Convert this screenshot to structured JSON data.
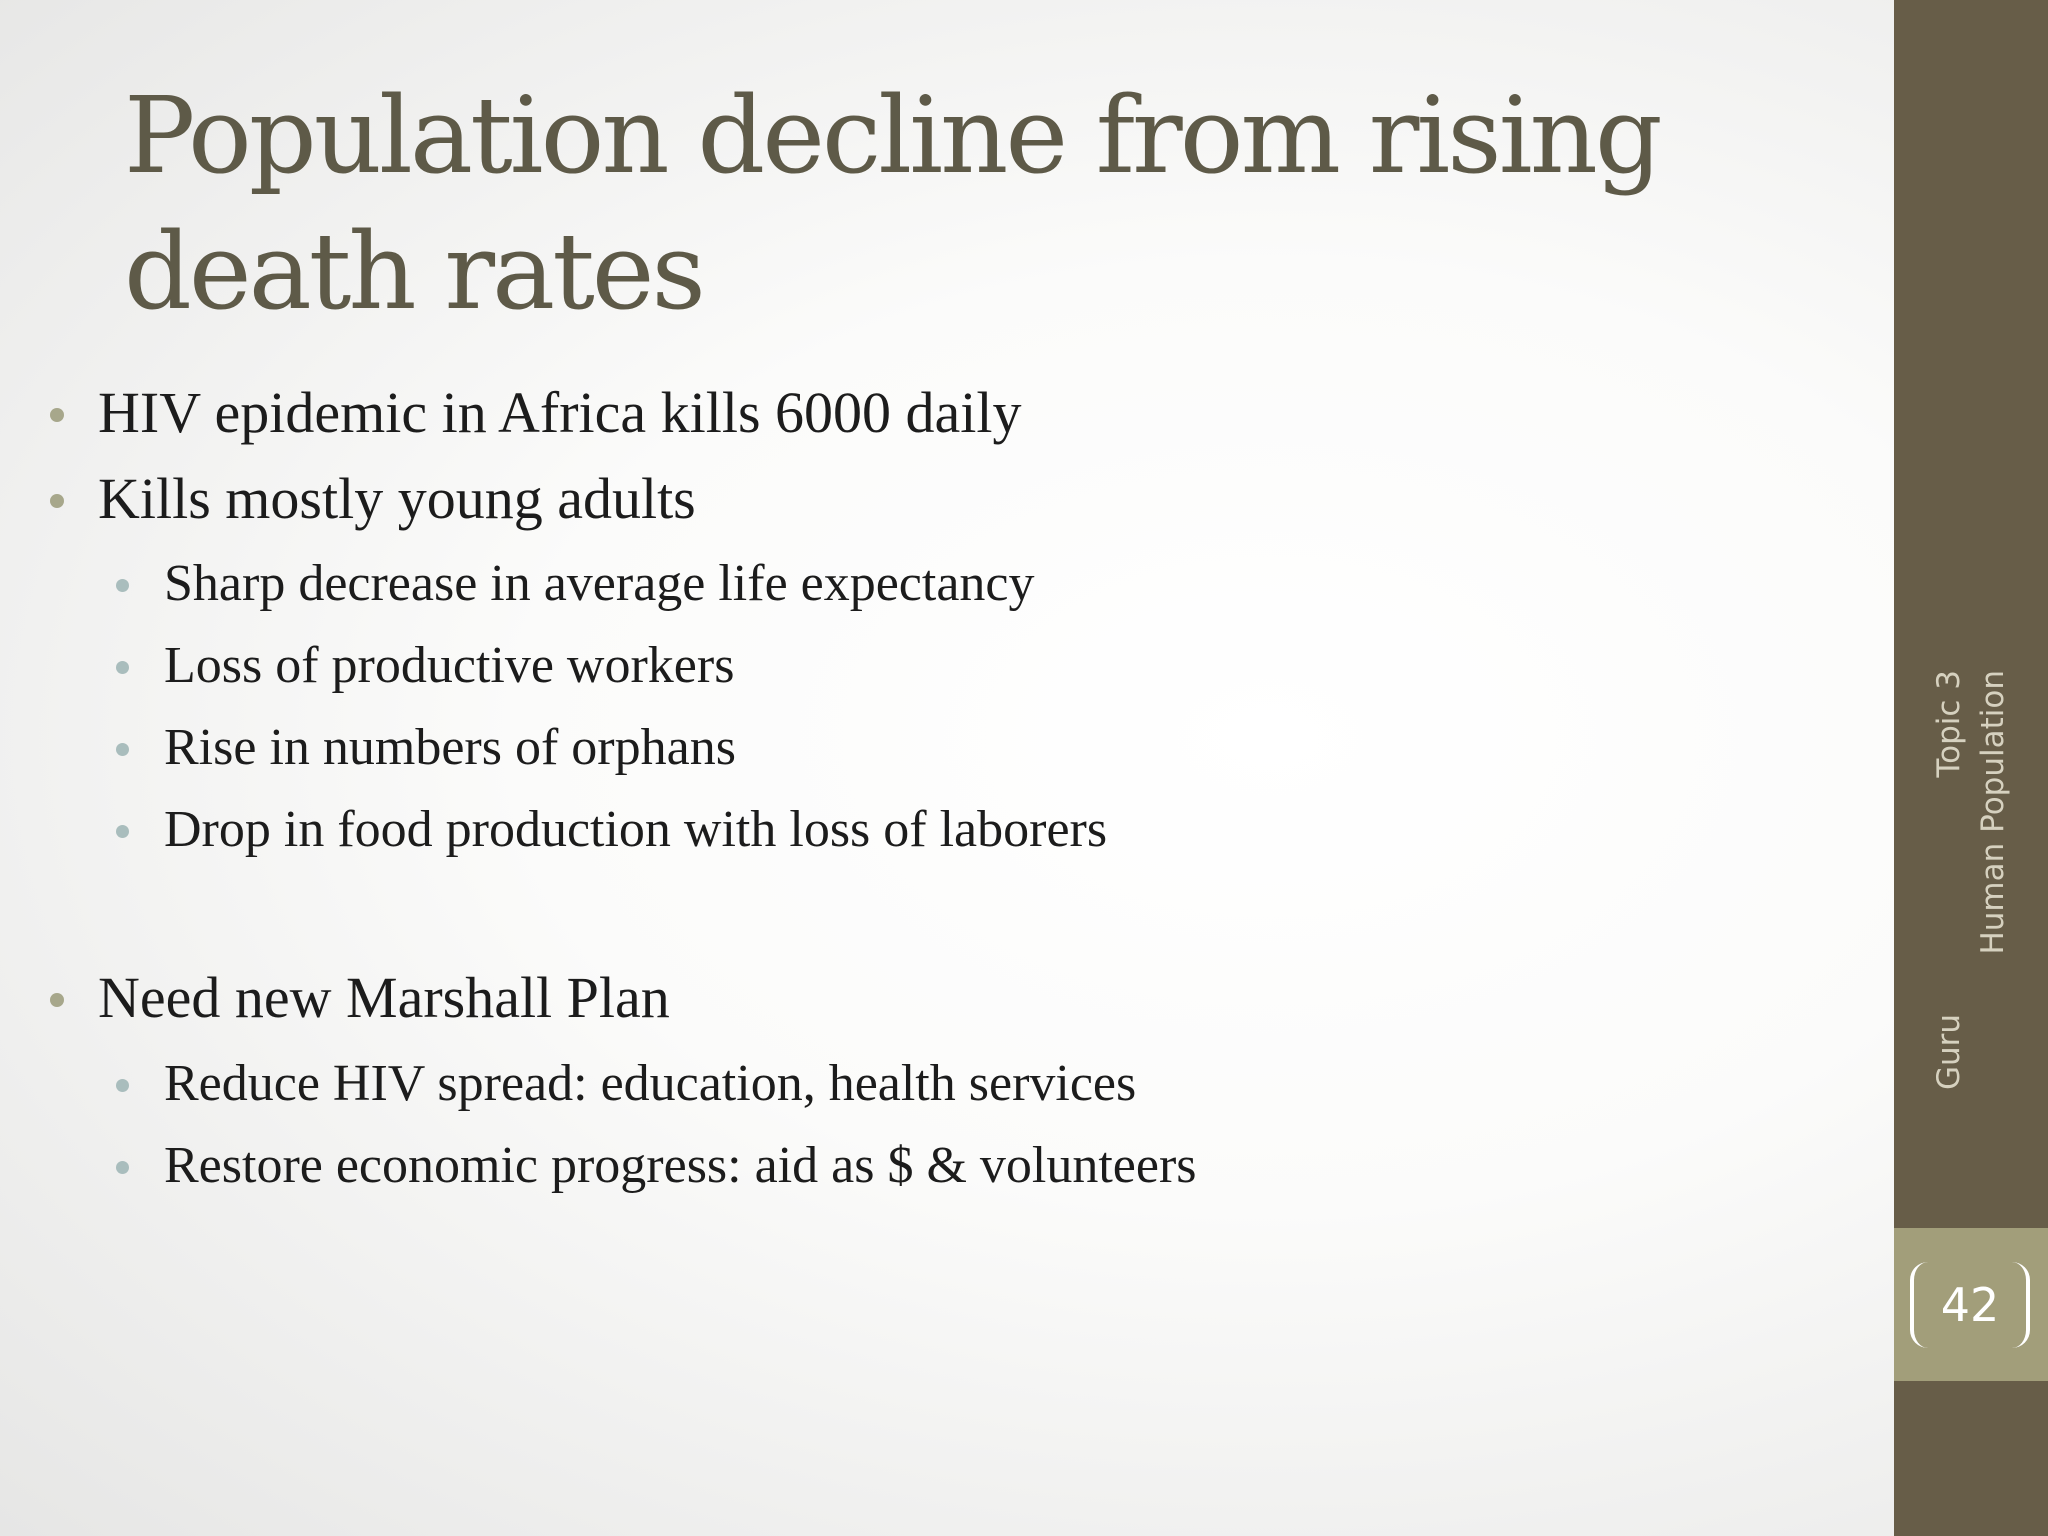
{
  "slide": {
    "title": "Population decline from rising death rates",
    "bullets": [
      {
        "level": 1,
        "text": "HIV epidemic in Africa kills 6000 daily"
      },
      {
        "level": 1,
        "text": "Kills mostly young adults"
      },
      {
        "level": 2,
        "text": "Sharp decrease in average life expectancy"
      },
      {
        "level": 2,
        "text": "Loss of productive workers"
      },
      {
        "level": 2,
        "text": "Rise in numbers of orphans"
      },
      {
        "level": 2,
        "text": "Drop in food production with loss of laborers"
      },
      {
        "level": 1,
        "text": "Need new Marshall Plan"
      },
      {
        "level": 2,
        "text": "Reduce HIV spread: education, health services"
      },
      {
        "level": 2,
        "text": "Restore economic progress: aid as $ & volunteers"
      }
    ]
  },
  "sidebar": {
    "footer_author": "Guru",
    "footer_topic": "Topic 3",
    "footer_subject": "Human Population",
    "page_number": "42"
  },
  "colors": {
    "title": "#5e5a48",
    "sidebar": "#675d48",
    "page_box": "#a29e7a",
    "bullet_level1": "#a7a78b",
    "bullet_level2": "#a9bdbd"
  }
}
